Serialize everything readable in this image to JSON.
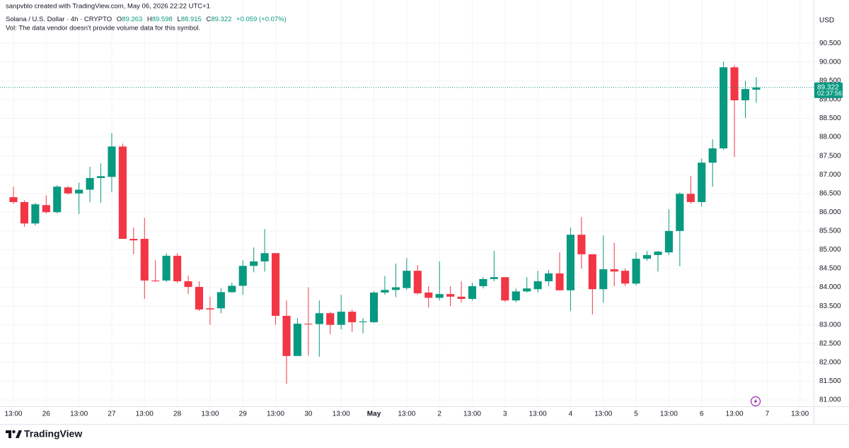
{
  "header": {
    "creator": "sanpvblo created with TradingView.com, May 06, 2026 22:22 UTC+1",
    "symbol": "Solana / U.S. Dollar · 4h · CRYPTO",
    "ohlc_letters": [
      "O",
      "H",
      "L",
      "C"
    ],
    "change": "+0.059 (+0.07%)",
    "volume_note": "Vol: The data vendor doesn't provide volume data for this symbol.",
    "currency": "USD",
    "countdown": "02:37:56",
    "brand": "TradingView"
  },
  "chart_data": {
    "type": "candlestick",
    "categories": [
      null,
      null,
      null,
      null,
      null,
      null,
      null,
      null,
      null,
      null,
      null,
      null,
      null,
      null,
      null,
      null,
      null,
      null,
      null,
      null,
      null,
      null,
      null,
      null,
      null,
      null,
      null,
      null,
      null,
      null,
      null,
      null,
      null,
      null,
      null,
      null,
      null,
      null,
      null,
      null,
      null,
      null,
      null,
      null,
      null,
      null,
      null,
      null,
      null,
      null,
      null,
      null,
      null,
      null,
      null,
      null,
      null,
      null,
      null,
      null,
      null,
      null,
      null,
      null,
      null,
      null,
      null,
      null,
      null
    ],
    "series": {
      "up_color": "#089981",
      "down_color": "#f23645",
      "open": [
        86.4,
        86.27,
        85.7,
        86.19,
        86.0,
        86.66,
        86.5,
        86.6,
        86.91,
        86.94,
        87.75,
        85.29,
        85.29,
        84.18,
        84.18,
        84.84,
        84.16,
        84.01,
        83.44,
        83.44,
        83.87,
        84.04,
        84.57,
        84.69,
        84.91,
        83.24,
        82.17,
        83.03,
        83.02,
        83.31,
        83.0,
        83.35,
        83.07,
        83.07,
        83.86,
        83.93,
        83.98,
        84.44,
        83.86,
        83.72,
        83.82,
        83.75,
        83.69,
        84.03,
        84.22,
        84.27,
        83.65,
        83.89,
        83.95,
        84.16,
        84.37,
        83.92,
        85.4,
        84.88,
        83.95,
        84.48,
        84.44,
        84.1,
        84.76,
        84.86,
        84.93,
        85.5,
        86.49,
        86.27,
        87.32,
        87.7,
        89.86,
        88.98,
        89.263
      ],
      "high": [
        86.68,
        86.32,
        86.25,
        86.45,
        86.72,
        86.7,
        86.79,
        87.21,
        87.3,
        88.11,
        87.83,
        85.59,
        85.85,
        84.72,
        84.91,
        84.91,
        84.31,
        84.16,
        83.75,
        83.97,
        84.12,
        84.72,
        85.06,
        85.55,
        84.91,
        83.65,
        83.18,
        84.0,
        83.65,
        83.35,
        83.8,
        83.41,
        83.18,
        83.9,
        84.3,
        84.63,
        84.78,
        84.59,
        84.03,
        84.69,
        84.03,
        84.16,
        84.12,
        84.27,
        84.97,
        84.27,
        83.97,
        84.27,
        84.44,
        84.46,
        84.93,
        85.59,
        85.87,
        84.88,
        85.38,
        85.19,
        84.5,
        84.93,
        84.97,
        84.97,
        86.08,
        86.53,
        86.96,
        87.43,
        87.94,
        90.01,
        89.92,
        89.5,
        89.598
      ],
      "low": [
        86.22,
        85.61,
        85.65,
        85.97,
        85.97,
        86.47,
        85.95,
        86.27,
        86.25,
        86.53,
        85.29,
        84.88,
        83.69,
        84.15,
        84.14,
        84.12,
        83.82,
        83.37,
        83.0,
        83.31,
        83.85,
        83.8,
        84.4,
        84.42,
        83.0,
        81.43,
        82.17,
        82.18,
        82.15,
        82.75,
        82.88,
        82.81,
        82.77,
        83.05,
        83.8,
        83.74,
        83.93,
        83.8,
        83.46,
        83.65,
        83.5,
        83.6,
        83.65,
        83.97,
        84.16,
        83.61,
        83.6,
        83.86,
        83.86,
        84.03,
        83.92,
        83.37,
        84.5,
        83.28,
        83.59,
        84.03,
        84.03,
        84.05,
        84.71,
        84.42,
        84.86,
        84.56,
        86.23,
        86.15,
        86.68,
        87.66,
        87.47,
        88.51,
        88.915
      ],
      "close": [
        86.27,
        85.7,
        86.21,
        86.0,
        86.68,
        86.5,
        86.6,
        86.91,
        86.96,
        87.75,
        85.29,
        85.25,
        84.18,
        84.16,
        84.84,
        84.16,
        84.01,
        83.41,
        83.41,
        83.87,
        84.04,
        84.57,
        84.69,
        84.91,
        83.24,
        82.17,
        83.03,
        83.02,
        83.31,
        83.0,
        83.35,
        83.07,
        83.09,
        83.86,
        83.93,
        84.0,
        84.44,
        83.84,
        83.72,
        83.82,
        83.75,
        83.69,
        84.03,
        84.22,
        84.27,
        83.65,
        83.89,
        83.97,
        84.16,
        84.37,
        83.92,
        85.4,
        84.88,
        83.95,
        84.48,
        84.42,
        84.1,
        84.76,
        84.86,
        84.95,
        85.5,
        86.49,
        86.27,
        87.32,
        87.7,
        89.86,
        88.98,
        89.28,
        89.322
      ]
    },
    "xlim": [
      -1.23,
      73.25
    ],
    "xticks": [
      {
        "value": 0,
        "label": "13:00"
      },
      {
        "value": 3,
        "label": "26"
      },
      {
        "value": 6,
        "label": "13:00"
      },
      {
        "value": 9,
        "label": "27"
      },
      {
        "value": 12,
        "label": "13:00"
      },
      {
        "value": 15,
        "label": "28"
      },
      {
        "value": 18,
        "label": "13:00"
      },
      {
        "value": 21,
        "label": "29"
      },
      {
        "value": 24,
        "label": "13:00"
      },
      {
        "value": 27,
        "label": "30"
      },
      {
        "value": 30,
        "label": "13:00"
      },
      {
        "value": 33,
        "label": "May"
      },
      {
        "value": 36,
        "label": "13:00"
      },
      {
        "value": 39,
        "label": "2"
      },
      {
        "value": 42,
        "label": "13:00"
      },
      {
        "value": 45,
        "label": "3"
      },
      {
        "value": 48,
        "label": "13:00"
      },
      {
        "value": 51,
        "label": "4"
      },
      {
        "value": 54,
        "label": "13:00"
      },
      {
        "value": 57,
        "label": "5"
      },
      {
        "value": 60,
        "label": "13:00"
      },
      {
        "value": 63,
        "label": "6"
      },
      {
        "value": 66,
        "label": "13:00"
      },
      {
        "value": 69,
        "label": "7"
      },
      {
        "value": 72,
        "label": "13:00"
      }
    ],
    "ylim": [
      80.83,
      91.37
    ],
    "yticks": [
      {
        "value": 81,
        "label": "81.000"
      },
      {
        "value": 81.5,
        "label": "81.500"
      },
      {
        "value": 82,
        "label": "82.000"
      },
      {
        "value": 82.5,
        "label": "82.500"
      },
      {
        "value": 83,
        "label": "83.000"
      },
      {
        "value": 83.5,
        "label": "83.500"
      },
      {
        "value": 84,
        "label": "84.000"
      },
      {
        "value": 84.5,
        "label": "84.500"
      },
      {
        "value": 85,
        "label": "85.000"
      },
      {
        "value": 85.5,
        "label": "85.500"
      },
      {
        "value": 86,
        "label": "86.000"
      },
      {
        "value": 86.5,
        "label": "86.500"
      },
      {
        "value": 87,
        "label": "87.000"
      },
      {
        "value": 87.5,
        "label": "87.500"
      },
      {
        "value": 88,
        "label": "88.000"
      },
      {
        "value": 88.5,
        "label": "88.500"
      },
      {
        "value": 89,
        "label": "89.000"
      },
      {
        "value": 89.5,
        "label": "89.500"
      },
      {
        "value": 90,
        "label": "90.000"
      },
      {
        "value": 90.5,
        "label": "90.500"
      }
    ],
    "grid": true
  }
}
